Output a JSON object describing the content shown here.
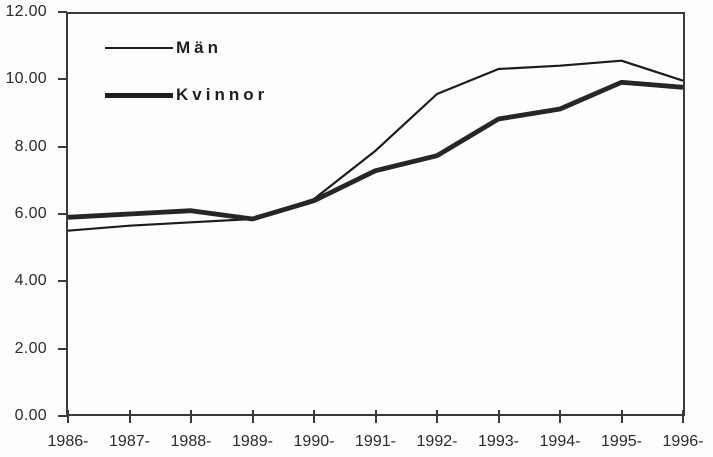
{
  "chart_data": {
    "type": "line",
    "title": "",
    "xlabel": "",
    "ylabel": "",
    "categories": [
      "1986-",
      "1987-",
      "1988-",
      "1989-",
      "1990-",
      "1991-",
      "1992-",
      "1993-",
      "1994-",
      "1995-",
      "1996-"
    ],
    "y_tick_labels": [
      "12.00",
      "10.00",
      "8.00",
      "6.00",
      "4.00",
      "2.00",
      "0.00"
    ],
    "ylim": [
      0,
      12
    ],
    "y_tick_step": 2,
    "grid": "off",
    "legend_position": "top-left-inside",
    "series": [
      {
        "name": "Män",
        "line_style": "thin",
        "stroke_width": 2.2,
        "color": "#1c1c1c",
        "values": [
          5.5,
          5.65,
          5.75,
          5.85,
          6.45,
          7.9,
          9.6,
          10.35,
          10.45,
          10.6,
          10.0
        ]
      },
      {
        "name": "Kvinnor",
        "line_style": "thick",
        "stroke_width": 4.8,
        "color": "#262626",
        "values": [
          5.9,
          6.0,
          6.1,
          5.85,
          6.4,
          7.3,
          7.75,
          8.85,
          9.15,
          9.95,
          9.8
        ]
      }
    ]
  },
  "colors": {
    "background": "#fdfdfd",
    "axis": "#3a3a3a",
    "text": "#2b2b2b"
  }
}
